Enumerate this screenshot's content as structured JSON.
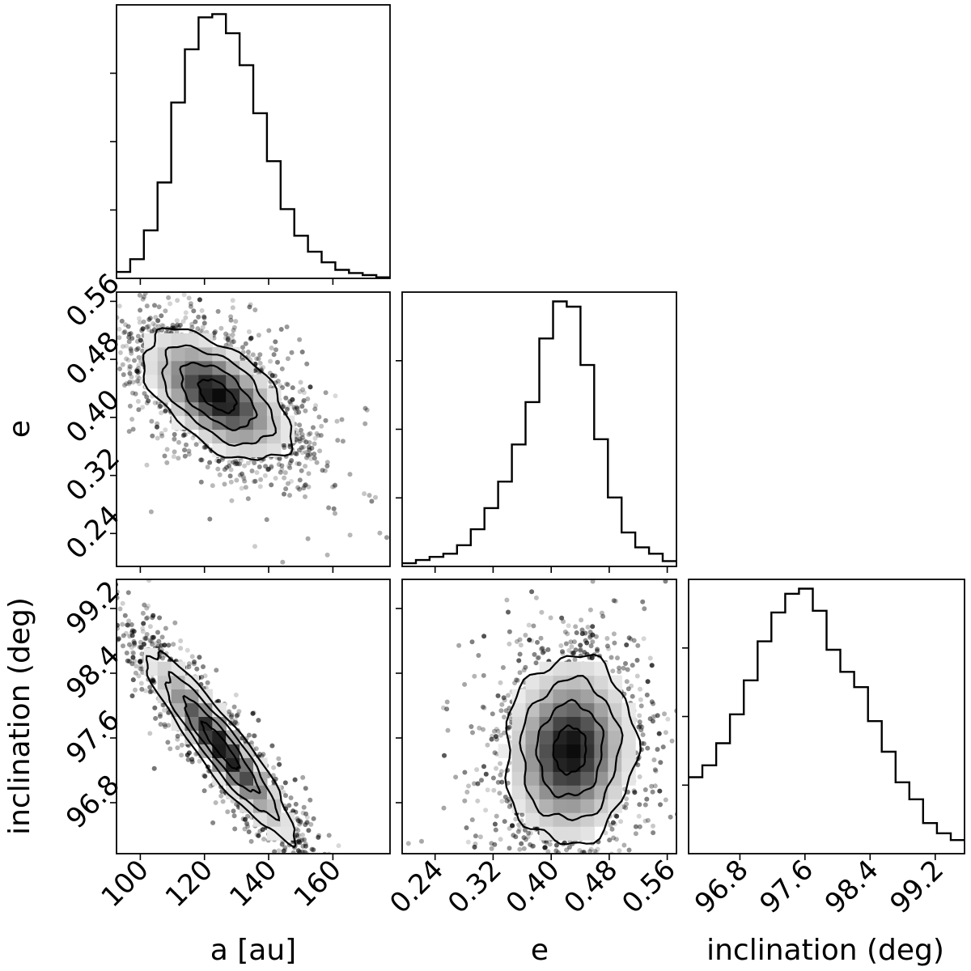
{
  "chart_data": {
    "type": "corner",
    "parameters": [
      {
        "key": "a",
        "label": "a [au]",
        "range": [
          92.6,
          177.8
        ],
        "ticks": [
          100,
          120,
          140,
          160
        ],
        "tick_labels": [
          "100",
          "120",
          "140",
          "160"
        ]
      },
      {
        "key": "e",
        "label": "e",
        "range": [
          0.1946,
          0.5727
        ],
        "ticks": [
          0.24,
          0.32,
          0.4,
          0.48,
          0.56
        ],
        "tick_labels": [
          "0.24",
          "0.32",
          "0.40",
          "0.48",
          "0.56"
        ]
      },
      {
        "key": "inc",
        "label": "inclination (deg)",
        "range": [
          96.17,
          99.56
        ],
        "ticks": [
          96.8,
          97.6,
          98.4,
          99.2
        ],
        "tick_labels": [
          "96.8",
          "97.6",
          "98.4",
          "99.2"
        ]
      }
    ],
    "histograms": [
      {
        "param": "a",
        "bins": 20,
        "range": [
          92.6,
          177.8
        ],
        "counts": [
          6,
          18,
          45,
          90,
          165,
          215,
          245,
          248,
          230,
          200,
          155,
          110,
          65,
          40,
          25,
          15,
          8,
          5,
          3,
          1
        ]
      },
      {
        "param": "e",
        "bins": 20,
        "range": [
          0.1946,
          0.5727
        ],
        "counts": [
          3,
          6,
          9,
          12,
          20,
          35,
          55,
          80,
          115,
          155,
          215,
          250,
          245,
          190,
          120,
          65,
          32,
          18,
          12,
          5
        ]
      },
      {
        "param": "inc",
        "bins": 20,
        "range": [
          96.17,
          99.56
        ],
        "counts": [
          45,
          52,
          65,
          82,
          102,
          125,
          142,
          153,
          156,
          143,
          120,
          107,
          98,
          78,
          60,
          42,
          32,
          18,
          12,
          8
        ]
      }
    ],
    "pairs": [
      {
        "x": "a",
        "y": "e",
        "peak": [
          124,
          0.43
        ],
        "sigma": [
          11.5,
          0.045
        ],
        "rho": -0.55
      },
      {
        "x": "a",
        "y": "inc",
        "peak": [
          125,
          97.5
        ],
        "sigma": [
          11.5,
          0.58
        ],
        "rho": -0.92
      },
      {
        "x": "e",
        "y": "inc",
        "peak": [
          0.426,
          97.45
        ],
        "sigma": [
          0.045,
          0.58
        ],
        "rho": 0.05
      }
    ],
    "contour_levels": [
      "0.5-sigma",
      "1-sigma",
      "1.5-sigma",
      "2-sigma"
    ]
  }
}
